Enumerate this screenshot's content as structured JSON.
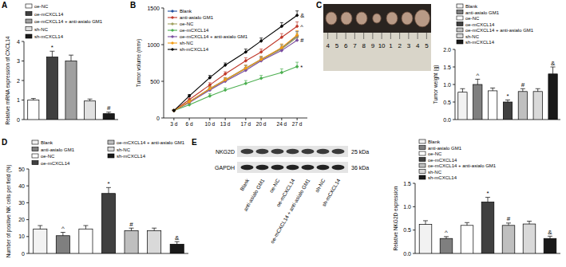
{
  "panel_labels": [
    "A",
    "B",
    "C",
    "D",
    "E"
  ],
  "chart_data": [
    {
      "type": "bar",
      "y_label": "Relative mRNA expression of CXCL14",
      "categories": [
        "oe-NC",
        "oe-mCXCL14",
        "oe-mCXCL14 + anti-asialo GM1",
        "sh-NC",
        "sh-mCXCL14"
      ],
      "values": [
        1.0,
        3.2,
        3.0,
        0.95,
        0.3
      ],
      "errors": [
        0.08,
        0.3,
        0.3,
        0.1,
        0.08
      ],
      "annotations": [
        null,
        "*",
        null,
        null,
        "#"
      ],
      "colors": [
        "#ffffff",
        "#404040",
        "#a0a0a0",
        "#e0e0e0",
        "#1a1a1a"
      ],
      "ylim": [
        0,
        4
      ],
      "yticks": [
        0,
        1,
        2,
        3,
        4
      ],
      "legend": "top",
      "tick_labels": "y"
    },
    {
      "type": "line",
      "y_label": "Tumor volume (mm³)",
      "x": [
        3,
        6,
        10,
        13,
        17,
        20,
        24,
        27
      ],
      "xlim": [
        1,
        29
      ],
      "xticks": [
        {
          "value": 3,
          "label": "3 d"
        },
        {
          "value": 6,
          "label": "6 d"
        },
        {
          "value": 10,
          "label": "10 d"
        },
        {
          "value": 13,
          "label": "13 d"
        },
        {
          "value": 17,
          "label": "17 d"
        },
        {
          "value": 20,
          "label": "20 d"
        },
        {
          "value": 24,
          "label": "24 d"
        },
        {
          "value": 27,
          "label": "27 d"
        }
      ],
      "ylim": [
        0,
        1500
      ],
      "yticks": [
        0,
        500,
        1000,
        1500
      ],
      "marker": "diamond",
      "legend": "upper left",
      "series": [
        {
          "name": "Blank",
          "color": "#1f4e9e",
          "values": [
            100,
            220,
            400,
            520,
            680,
            800,
            950,
            1120
          ],
          "errors": [
            10,
            20,
            30,
            30,
            40,
            40,
            50,
            60
          ]
        },
        {
          "name": "anti-asialo GM1",
          "color": "#c0392b",
          "values": [
            100,
            250,
            450,
            600,
            780,
            900,
            1100,
            1250
          ],
          "errors": [
            10,
            20,
            30,
            30,
            40,
            40,
            50,
            60
          ],
          "annotation": "^"
        },
        {
          "name": "oe-NC",
          "color": "#a0a060",
          "values": [
            100,
            220,
            390,
            510,
            670,
            790,
            940,
            1100
          ],
          "errors": [
            10,
            20,
            30,
            30,
            40,
            40,
            50,
            60
          ]
        },
        {
          "name": "oe-mCXCL14",
          "color": "#4caf50",
          "values": [
            100,
            180,
            300,
            380,
            470,
            540,
            620,
            700
          ],
          "errors": [
            10,
            20,
            30,
            30,
            40,
            40,
            50,
            60
          ],
          "annotation": "*"
        },
        {
          "name": "oe-mCXCL14 + anti-asialo GM1",
          "color": "#7b4fa0",
          "values": [
            100,
            210,
            380,
            500,
            650,
            780,
            920,
            1060
          ],
          "errors": [
            10,
            20,
            30,
            30,
            40,
            40,
            50,
            60
          ],
          "annotation": "#"
        },
        {
          "name": "sh-NC",
          "color": "#f39c12",
          "values": [
            100,
            220,
            400,
            520,
            680,
            800,
            960,
            1130
          ],
          "errors": [
            10,
            20,
            30,
            30,
            40,
            40,
            50,
            60
          ]
        },
        {
          "name": "sh-mCXCL14",
          "color": "#000000",
          "values": [
            100,
            300,
            550,
            720,
            900,
            1050,
            1250,
            1400
          ],
          "errors": [
            10,
            20,
            30,
            30,
            40,
            40,
            50,
            60
          ],
          "annotation": "&"
        }
      ]
    },
    {
      "type": "bar",
      "y_label": "Tumor weight (g)",
      "categories": [
        "Blank",
        "anti-asialo GM1",
        "oe-NC",
        "oe-mCXCL14",
        "oe-mCXCL14 + anti-asialo GM1",
        "sh-NC",
        "sh-mCXCL14"
      ],
      "values": [
        0.78,
        1.0,
        0.82,
        0.5,
        0.8,
        0.8,
        1.3
      ],
      "errors": [
        0.1,
        0.15,
        0.08,
        0.06,
        0.08,
        0.08,
        0.2
      ],
      "annotations": [
        null,
        "^",
        null,
        "*",
        "#",
        null,
        "&"
      ],
      "colors": [
        "#f2f2f2",
        "#7f7f7f",
        "#ffffff",
        "#404040",
        "#bfbfbf",
        "#d9d9d9",
        "#1a1a1a"
      ],
      "ylim": [
        0,
        2
      ],
      "yticks": [
        {
          "value": 0,
          "label": "0.0"
        },
        0.5,
        {
          "value": 1,
          "label": "1.0"
        },
        1.5,
        {
          "value": 2,
          "label": "2.0"
        }
      ],
      "legend": "top",
      "tick_labels": "y"
    },
    {
      "type": "bar",
      "y_label": "Number of positive NK cells per field (%)",
      "categories": [
        "Blank",
        "anti-asialo GM1",
        "oe-NC",
        "oe-mCXCL14",
        "oe-mCXCL14 + anti-asialo GM1",
        "sh-NC",
        "sh-mCXCL14"
      ],
      "values": [
        14.5,
        10.5,
        14.5,
        35.5,
        13.5,
        13.5,
        5.5
      ],
      "errors": [
        2,
        2,
        2,
        3.5,
        1.5,
        1.5,
        1.5
      ],
      "annotations": [
        null,
        "^",
        null,
        "*",
        "#",
        null,
        "&"
      ],
      "colors": [
        "#f2f2f2",
        "#7f7f7f",
        "#ffffff",
        "#404040",
        "#bfbfbf",
        "#d9d9d9",
        "#1a1a1a"
      ],
      "ylim": [
        0,
        50
      ],
      "yticks": [
        0,
        10,
        20,
        30,
        40,
        50
      ],
      "legend": "top",
      "tick_labels": "y"
    },
    {
      "type": "bar",
      "y_label": "Relative NKG2D expression",
      "categories": [
        "Blank",
        "anti-asialo GM1",
        "oe-NC",
        "oe-mCXCL14",
        "oe-mCXCL14 + anti-asialo GM1",
        "sh-NC",
        "sh-mCXCL14"
      ],
      "values": [
        0.62,
        0.32,
        0.6,
        1.1,
        0.6,
        0.63,
        0.32
      ],
      "errors": [
        0.08,
        0.04,
        0.06,
        0.1,
        0.05,
        0.06,
        0.05
      ],
      "annotations": [
        null,
        "^",
        null,
        "*",
        "#",
        null,
        "&"
      ],
      "colors": [
        "#f2f2f2",
        "#7f7f7f",
        "#ffffff",
        "#404040",
        "#bfbfbf",
        "#d9d9d9",
        "#1a1a1a"
      ],
      "ylim": [
        0,
        1.5
      ],
      "yticks": [
        {
          "value": 0,
          "label": "0.0"
        },
        0.5,
        {
          "value": 1,
          "label": "1.0"
        },
        1.5
      ],
      "legend": "top",
      "tick_labels": "y"
    }
  ],
  "photo": {
    "ruler_labels": [
      "4",
      "5",
      "6",
      "7",
      "8",
      "9",
      "10",
      "1",
      "2",
      "3",
      "4",
      "5"
    ]
  },
  "blot": {
    "rows": [
      {
        "name": "NKG2D",
        "size": "25 kDa"
      },
      {
        "name": "GAPDH",
        "size": "36 kDa"
      }
    ],
    "lanes": [
      "Blank",
      "anti-asialo GM1",
      "oe-NC",
      "oe-mCXCL14",
      "oe-mCXCL14 + anti-asialo GM1",
      "sh-NC",
      "sh-mCXCL14"
    ]
  }
}
